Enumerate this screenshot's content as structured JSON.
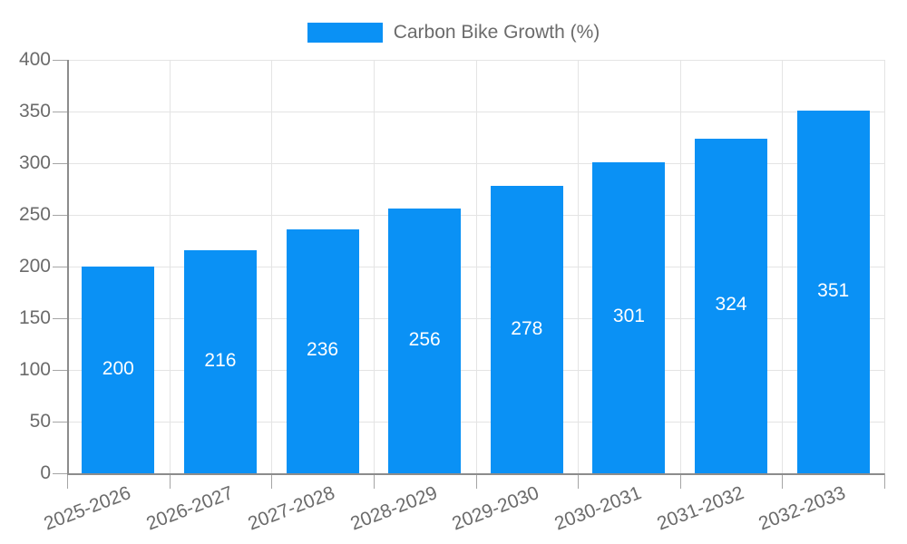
{
  "legend": {
    "label": "Carbon Bike Growth (%)"
  },
  "colors": {
    "bar": "#0a91f5",
    "grid": "#e4e4e4",
    "axis": "#8c8c8c",
    "tick": "#a5a5a5",
    "tick_text": "#6b6b6b",
    "bar_label": "#ffffff",
    "background": "#ffffff"
  },
  "chart_data": {
    "type": "bar",
    "title": "Carbon Bike Growth (%)",
    "categories": [
      "2025-2026",
      "2026-2027",
      "2027-2028",
      "2028-2029",
      "2029-2030",
      "2030-2031",
      "2031-2032",
      "2032-2033"
    ],
    "values": [
      200,
      216,
      236,
      256,
      278,
      301,
      324,
      351
    ],
    "xlabel": "",
    "ylabel": "",
    "ylim": [
      0,
      400
    ],
    "ytick_step": 50,
    "yticks": [
      0,
      50,
      100,
      150,
      200,
      250,
      300,
      350,
      400
    ],
    "grid": true,
    "legend_position": "top-center",
    "value_labels": "inside-center",
    "x_label_rotation_deg": -21
  }
}
